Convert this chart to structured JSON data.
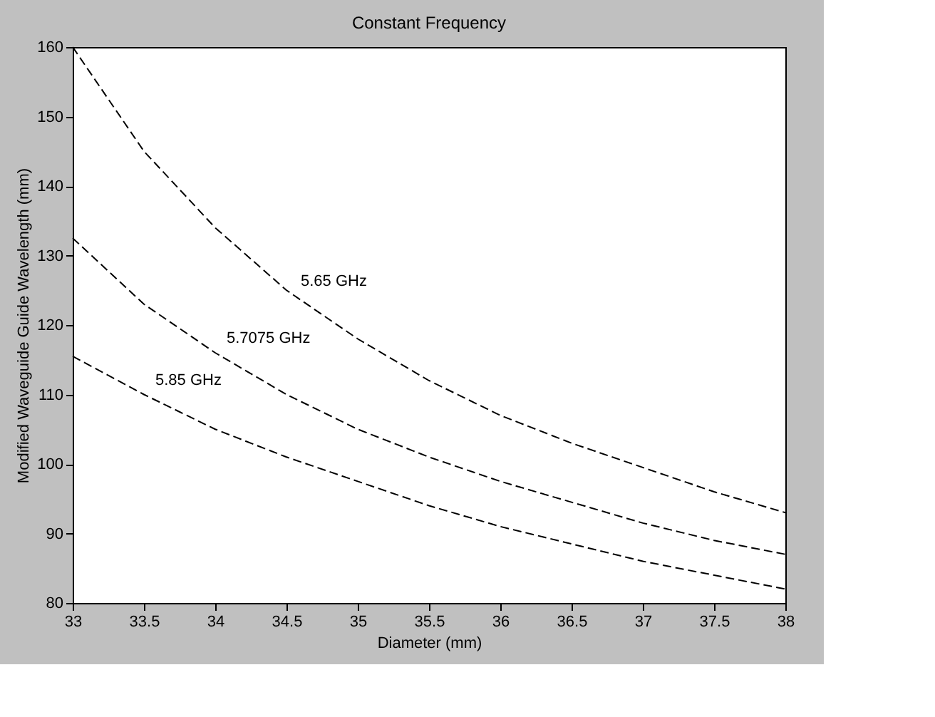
{
  "chart_data": {
    "type": "line",
    "title": "Constant Frequency",
    "xlabel": "Diameter (mm)",
    "ylabel": "Modified Waveguide Guide Wavelength (mm)",
    "x": [
      33,
      33.5,
      34,
      34.5,
      35,
      35.5,
      36,
      36.5,
      37,
      37.5,
      38
    ],
    "series": [
      {
        "name": "5.65 GHz",
        "color": "#000000",
        "values": [
          160,
          145,
          134,
          125,
          118,
          112,
          107,
          103,
          99.5,
          96,
          93
        ]
      },
      {
        "name": "5.7075 GHz",
        "color": "#000000",
        "values": [
          132.5,
          123,
          116,
          110,
          105,
          101,
          97.5,
          94.5,
          91.5,
          89,
          87
        ]
      },
      {
        "name": "5.85 GHz",
        "color": "#000000",
        "values": [
          115.5,
          110,
          105,
          101,
          97.5,
          94,
          91,
          88.5,
          86,
          84,
          82
        ]
      }
    ],
    "xlim": [
      33,
      38
    ],
    "xticks": [
      33,
      33.5,
      34,
      34.5,
      35,
      35.5,
      36,
      36.5,
      37,
      37.5,
      38
    ],
    "ylim": [
      80,
      160
    ],
    "yticks": [
      80,
      90,
      100,
      110,
      120,
      130,
      140,
      150,
      160
    ],
    "line_style": "dashed",
    "grid": false
  }
}
